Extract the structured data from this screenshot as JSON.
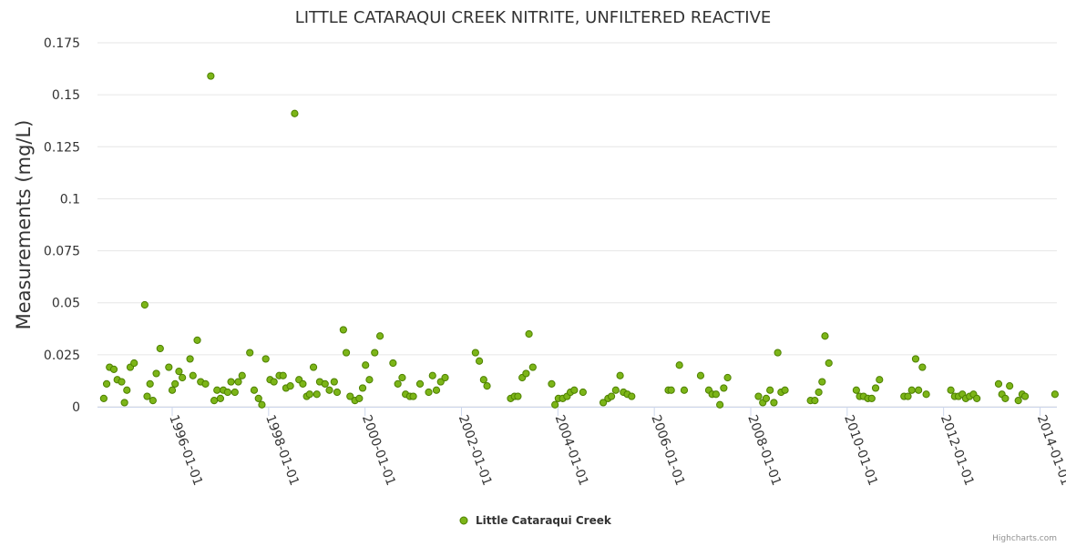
{
  "credit": "Highcharts.com",
  "colors": {
    "point_fill": "#7cb518",
    "point_stroke": "#4d8000",
    "grid": "#e6e6e6",
    "axis": "#ccd6eb"
  },
  "chart_data": {
    "type": "scatter",
    "title": "LITTLE CATARAQUI CREEK NITRITE, UNFILTERED REACTIVE",
    "xlabel": "",
    "ylabel": "Measurements (mg/L)",
    "ylim": [
      0,
      0.175
    ],
    "y_ticks": [
      0,
      0.025,
      0.05,
      0.075,
      0.1,
      0.125,
      0.15,
      0.175
    ],
    "y_tick_labels": [
      "0",
      "0.025",
      "0.05",
      "0.075",
      "0.1",
      "0.125",
      "0.15",
      "0.175"
    ],
    "xlim": [
      1994.45,
      2014.35
    ],
    "x_ticks": [
      1996,
      1998,
      2000,
      2002,
      2004,
      2006,
      2008,
      2010,
      2012,
      2014
    ],
    "x_tick_labels": [
      "1996-01-01",
      "1998-01-01",
      "2000-01-01",
      "2002-01-01",
      "2004-01-01",
      "2006-01-01",
      "2008-01-01",
      "2010-01-01",
      "2012-01-01",
      "2014-01-01"
    ],
    "legend": "bottom-center",
    "series": [
      {
        "name": "Little Cataraqui Creek",
        "points": [
          [
            1994.58,
            0.004
          ],
          [
            1994.64,
            0.011
          ],
          [
            1994.7,
            0.019
          ],
          [
            1994.79,
            0.018
          ],
          [
            1994.86,
            0.013
          ],
          [
            1994.95,
            0.012
          ],
          [
            1995.01,
            0.002
          ],
          [
            1995.06,
            0.008
          ],
          [
            1995.13,
            0.019
          ],
          [
            1995.21,
            0.021
          ],
          [
            1995.43,
            0.049
          ],
          [
            1995.48,
            0.005
          ],
          [
            1995.54,
            0.011
          ],
          [
            1995.6,
            0.003
          ],
          [
            1995.67,
            0.016
          ],
          [
            1995.75,
            0.028
          ],
          [
            1995.93,
            0.019
          ],
          [
            1996.0,
            0.008
          ],
          [
            1996.06,
            0.011
          ],
          [
            1996.14,
            0.017
          ],
          [
            1996.21,
            0.014
          ],
          [
            1996.37,
            0.023
          ],
          [
            1996.43,
            0.015
          ],
          [
            1996.52,
            0.032
          ],
          [
            1996.59,
            0.012
          ],
          [
            1996.69,
            0.011
          ],
          [
            1996.8,
            0.159
          ],
          [
            1996.87,
            0.003
          ],
          [
            1996.93,
            0.008
          ],
          [
            1997.0,
            0.004
          ],
          [
            1997.06,
            0.008
          ],
          [
            1997.15,
            0.007
          ],
          [
            1997.22,
            0.012
          ],
          [
            1997.3,
            0.007
          ],
          [
            1997.37,
            0.012
          ],
          [
            1997.45,
            0.015
          ],
          [
            1997.61,
            0.026
          ],
          [
            1997.7,
            0.008
          ],
          [
            1997.79,
            0.004
          ],
          [
            1997.86,
            0.001
          ],
          [
            1997.94,
            0.023
          ],
          [
            1998.03,
            0.013
          ],
          [
            1998.11,
            0.012
          ],
          [
            1998.22,
            0.015
          ],
          [
            1998.3,
            0.015
          ],
          [
            1998.36,
            0.009
          ],
          [
            1998.45,
            0.01
          ],
          [
            1998.54,
            0.141
          ],
          [
            1998.63,
            0.013
          ],
          [
            1998.71,
            0.011
          ],
          [
            1998.79,
            0.005
          ],
          [
            1998.85,
            0.006
          ],
          [
            1998.93,
            0.019
          ],
          [
            1999.0,
            0.006
          ],
          [
            1999.06,
            0.012
          ],
          [
            1999.17,
            0.011
          ],
          [
            1999.26,
            0.008
          ],
          [
            1999.36,
            0.012
          ],
          [
            1999.42,
            0.007
          ],
          [
            1999.55,
            0.037
          ],
          [
            1999.61,
            0.026
          ],
          [
            1999.69,
            0.005
          ],
          [
            1999.79,
            0.003
          ],
          [
            1999.88,
            0.004
          ],
          [
            1999.95,
            0.009
          ],
          [
            2000.01,
            0.02
          ],
          [
            2000.09,
            0.013
          ],
          [
            2000.2,
            0.026
          ],
          [
            2000.31,
            0.034
          ],
          [
            2000.58,
            0.021
          ],
          [
            2000.68,
            0.011
          ],
          [
            2000.77,
            0.014
          ],
          [
            2000.84,
            0.006
          ],
          [
            2000.93,
            0.005
          ],
          [
            2001.0,
            0.005
          ],
          [
            2001.14,
            0.011
          ],
          [
            2001.32,
            0.007
          ],
          [
            2001.4,
            0.015
          ],
          [
            2001.48,
            0.008
          ],
          [
            2001.57,
            0.012
          ],
          [
            2001.66,
            0.014
          ],
          [
            2002.29,
            0.026
          ],
          [
            2002.37,
            0.022
          ],
          [
            2002.46,
            0.013
          ],
          [
            2002.53,
            0.01
          ],
          [
            2003.02,
            0.004
          ],
          [
            2003.1,
            0.005
          ],
          [
            2003.17,
            0.005
          ],
          [
            2003.26,
            0.014
          ],
          [
            2003.34,
            0.016
          ],
          [
            2003.4,
            0.035
          ],
          [
            2003.48,
            0.019
          ],
          [
            2003.87,
            0.011
          ],
          [
            2003.94,
            0.001
          ],
          [
            2004.01,
            0.004
          ],
          [
            2004.1,
            0.004
          ],
          [
            2004.19,
            0.005
          ],
          [
            2004.26,
            0.007
          ],
          [
            2004.34,
            0.008
          ],
          [
            2004.52,
            0.007
          ],
          [
            2004.94,
            0.002
          ],
          [
            2005.04,
            0.004
          ],
          [
            2005.11,
            0.005
          ],
          [
            2005.2,
            0.008
          ],
          [
            2005.29,
            0.015
          ],
          [
            2005.36,
            0.007
          ],
          [
            2005.44,
            0.006
          ],
          [
            2005.53,
            0.005
          ],
          [
            2006.29,
            0.008
          ],
          [
            2006.35,
            0.008
          ],
          [
            2006.52,
            0.02
          ],
          [
            2006.62,
            0.008
          ],
          [
            2006.96,
            0.015
          ],
          [
            2007.13,
            0.008
          ],
          [
            2007.2,
            0.006
          ],
          [
            2007.28,
            0.006
          ],
          [
            2007.36,
            0.001
          ],
          [
            2007.44,
            0.009
          ],
          [
            2007.52,
            0.014
          ],
          [
            2008.16,
            0.005
          ],
          [
            2008.25,
            0.002
          ],
          [
            2008.32,
            0.004
          ],
          [
            2008.4,
            0.008
          ],
          [
            2008.48,
            0.002
          ],
          [
            2008.56,
            0.026
          ],
          [
            2008.63,
            0.007
          ],
          [
            2008.71,
            0.008
          ],
          [
            2009.24,
            0.003
          ],
          [
            2009.33,
            0.003
          ],
          [
            2009.41,
            0.007
          ],
          [
            2009.48,
            0.012
          ],
          [
            2009.54,
            0.034
          ],
          [
            2009.62,
            0.021
          ],
          [
            2010.19,
            0.008
          ],
          [
            2010.26,
            0.005
          ],
          [
            2010.34,
            0.005
          ],
          [
            2010.43,
            0.004
          ],
          [
            2010.51,
            0.004
          ],
          [
            2010.59,
            0.009
          ],
          [
            2010.67,
            0.013
          ],
          [
            2011.18,
            0.005
          ],
          [
            2011.26,
            0.005
          ],
          [
            2011.34,
            0.008
          ],
          [
            2011.42,
            0.023
          ],
          [
            2011.48,
            0.008
          ],
          [
            2011.56,
            0.019
          ],
          [
            2011.64,
            0.006
          ],
          [
            2012.15,
            0.008
          ],
          [
            2012.23,
            0.005
          ],
          [
            2012.31,
            0.005
          ],
          [
            2012.39,
            0.006
          ],
          [
            2012.46,
            0.004
          ],
          [
            2012.54,
            0.005
          ],
          [
            2012.62,
            0.006
          ],
          [
            2012.69,
            0.004
          ],
          [
            2013.14,
            0.011
          ],
          [
            2013.21,
            0.006
          ],
          [
            2013.28,
            0.004
          ],
          [
            2013.37,
            0.01
          ],
          [
            2013.55,
            0.003
          ],
          [
            2013.63,
            0.006
          ],
          [
            2013.69,
            0.005
          ],
          [
            2014.31,
            0.006
          ]
        ]
      }
    ]
  }
}
